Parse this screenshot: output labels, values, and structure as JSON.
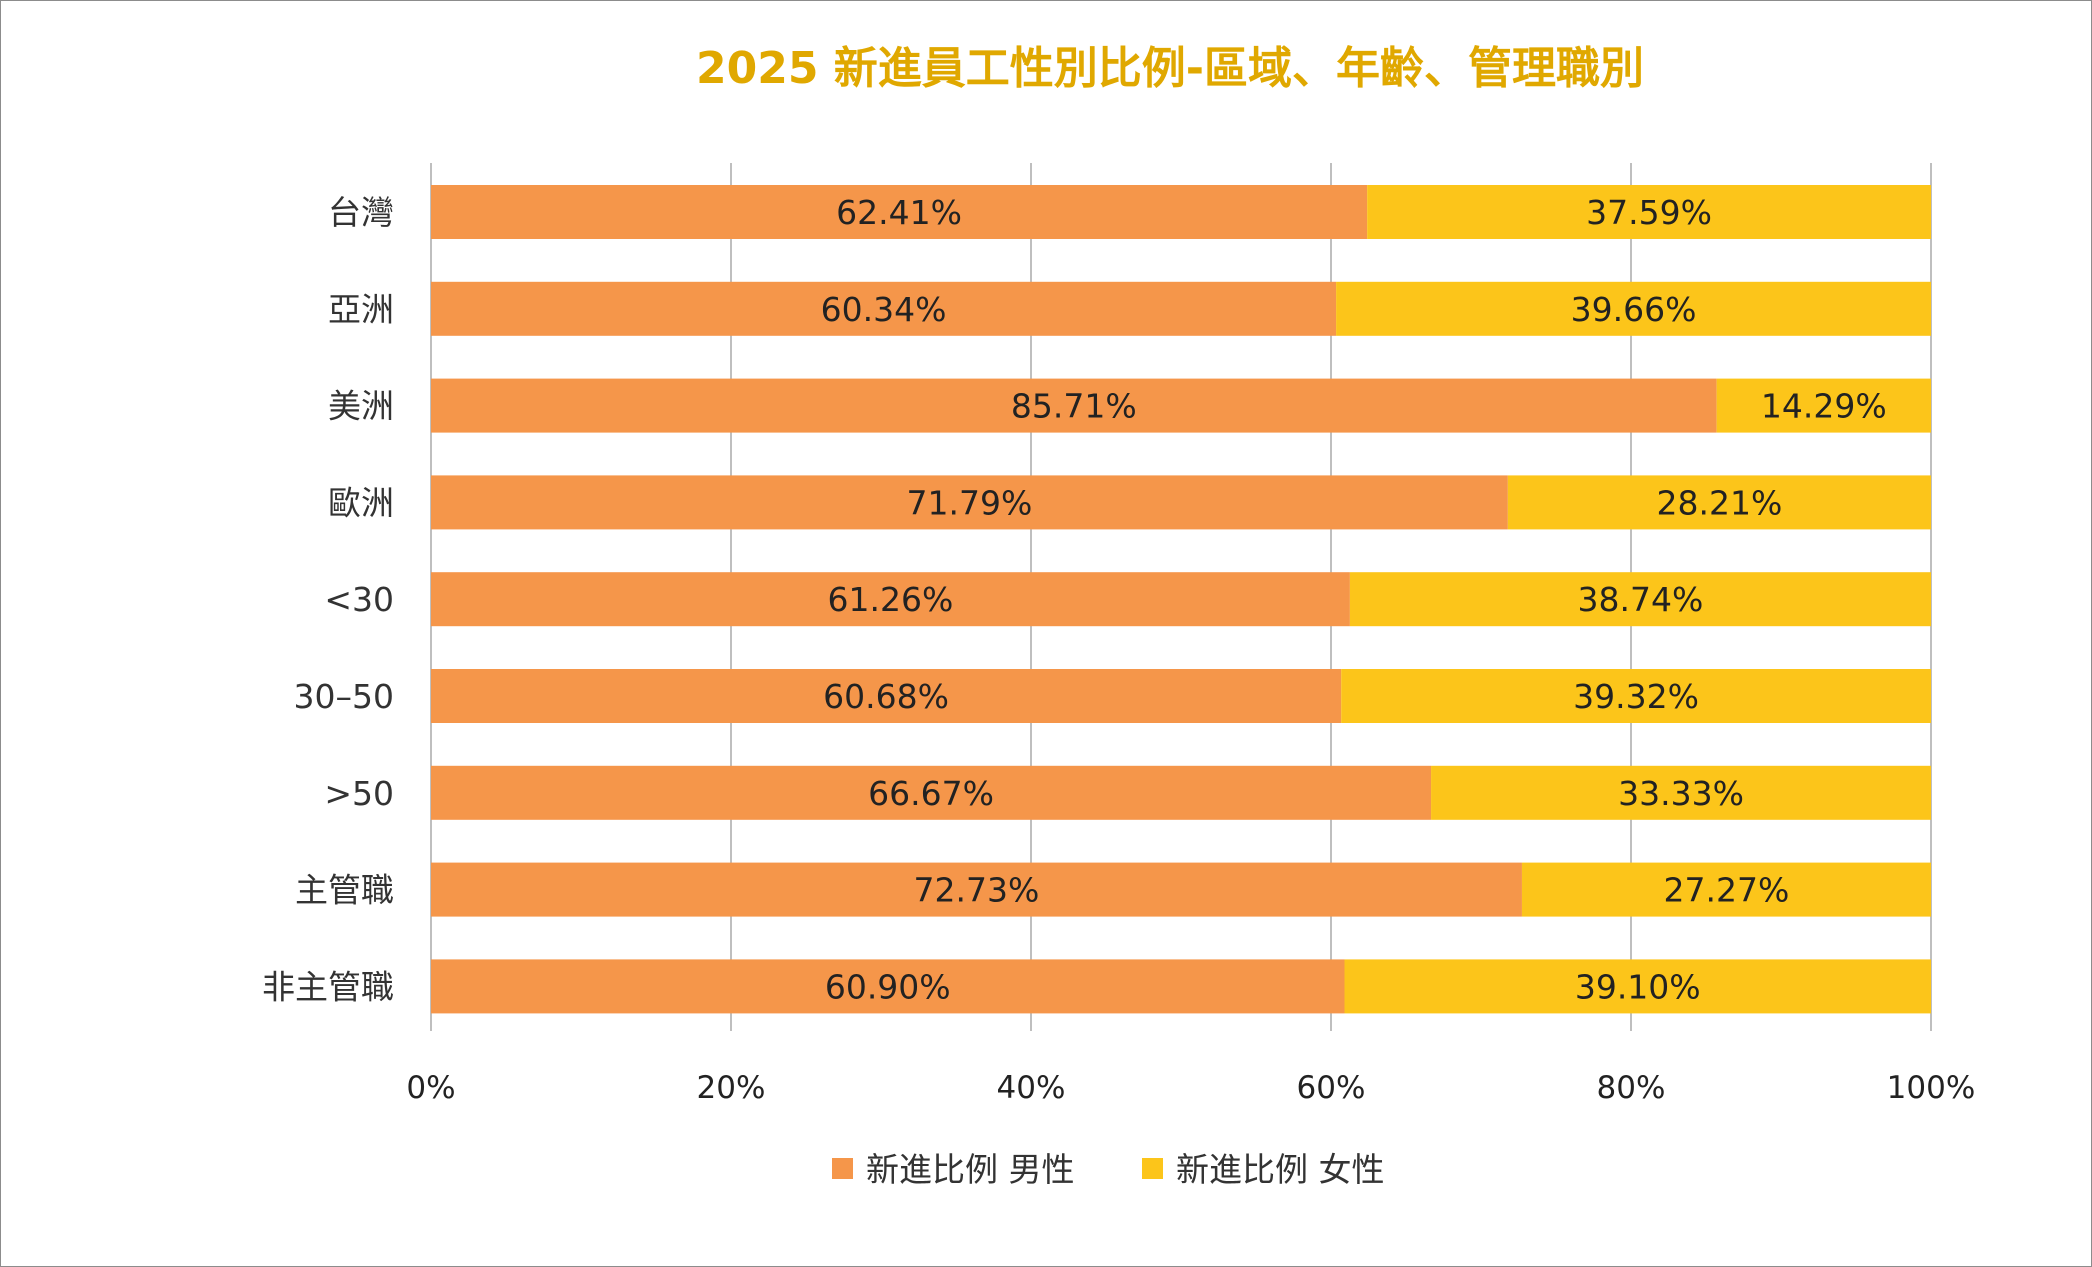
{
  "chart_data": {
    "type": "bar",
    "orientation": "horizontal",
    "stacked": true,
    "title": "2025 新進員工性別比例-區域、年齡、管理職別",
    "categories": [
      "台灣",
      "亞洲",
      "美洲",
      "歐洲",
      "<30",
      "30–50",
      ">50",
      "主管職",
      "非主管職"
    ],
    "series": [
      {
        "name": "新進比例 男性",
        "color": "#f5964a",
        "values": [
          62.41,
          60.34,
          85.71,
          71.79,
          61.26,
          60.68,
          66.67,
          72.73,
          60.9
        ],
        "labels": [
          "62.41%",
          "60.34%",
          "85.71%",
          "71.79%",
          "61.26%",
          "60.68%",
          "66.67%",
          "72.73%",
          "60.90%"
        ]
      },
      {
        "name": "新進比例 女性",
        "color": "#fcc51a",
        "values": [
          37.59,
          39.66,
          14.29,
          28.21,
          38.74,
          39.32,
          33.33,
          27.27,
          39.1
        ],
        "labels": [
          "37.59%",
          "39.66%",
          "14.29%",
          "28.21%",
          "38.74%",
          "39.32%",
          "33.33%",
          "27.27%",
          "39.10%"
        ]
      }
    ],
    "xlim": [
      0,
      100
    ],
    "x_ticks": [
      "0%",
      "20%",
      "40%",
      "60%",
      "80%",
      "100%"
    ],
    "x_tick_values": [
      0,
      20,
      40,
      60,
      80,
      100
    ],
    "grid": true,
    "legend_position": "bottom",
    "title_color": "#e0a800"
  }
}
